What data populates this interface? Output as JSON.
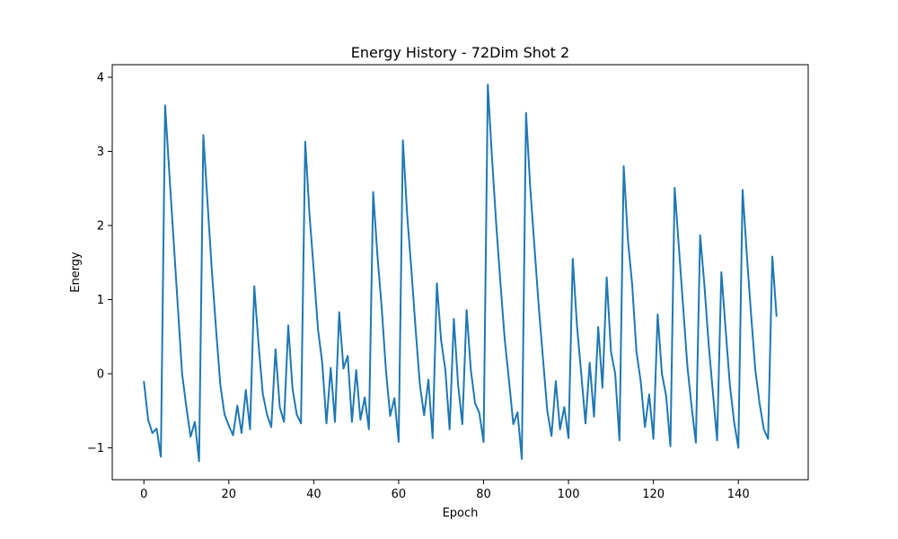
{
  "chart_data": {
    "type": "line",
    "title": "Energy History - 72Dim Shot 2",
    "xlabel": "Epoch",
    "ylabel": "Energy",
    "xlim": [
      -7.45,
      156.45
    ],
    "ylim": [
      -1.43,
      4.17
    ],
    "xticks": [
      0,
      20,
      40,
      60,
      80,
      100,
      120,
      140
    ],
    "yticks": [
      -1,
      0,
      1,
      2,
      3,
      4
    ],
    "grid": false,
    "line_color": "#1f77b4",
    "series": [
      {
        "x": [
          0,
          1,
          2,
          3,
          4,
          5,
          6,
          7,
          8,
          9,
          10,
          11,
          12,
          13,
          14,
          15,
          16,
          17,
          18,
          19,
          20,
          21,
          22,
          23,
          24,
          25,
          26,
          27,
          28,
          29,
          30,
          31,
          32,
          33,
          34,
          35,
          36,
          37,
          38,
          39,
          40,
          41,
          42,
          43,
          44,
          45,
          46,
          47,
          48,
          49,
          50,
          51,
          52,
          53,
          54,
          55,
          56,
          57,
          58,
          59,
          60,
          61,
          62,
          63,
          64,
          65,
          66,
          67,
          68,
          69,
          70,
          71,
          72,
          73,
          74,
          75,
          76,
          77,
          78,
          79,
          80,
          81,
          82,
          83,
          84,
          85,
          86,
          87,
          88,
          89,
          90,
          91,
          92,
          93,
          94,
          95,
          96,
          97,
          98,
          99,
          100,
          101,
          102,
          103,
          104,
          105,
          106,
          107,
          108,
          109,
          110,
          111,
          112,
          113,
          114,
          115,
          116,
          117,
          118,
          119,
          120,
          121,
          122,
          123,
          124,
          125,
          126,
          127,
          128,
          129,
          130,
          131,
          132,
          133,
          134,
          135,
          136,
          137,
          138,
          139,
          140,
          141,
          142,
          143,
          144,
          145,
          146,
          147,
          148,
          149
        ],
        "values": [
          -0.1,
          -0.62,
          -0.8,
          -0.74,
          -1.12,
          3.62,
          2.7,
          1.8,
          0.9,
          0.0,
          -0.45,
          -0.85,
          -0.65,
          -1.18,
          3.22,
          2.3,
          1.4,
          0.6,
          -0.15,
          -0.55,
          -0.7,
          -0.83,
          -0.43,
          -0.8,
          -0.22,
          -0.75,
          1.18,
          0.4,
          -0.27,
          -0.55,
          -0.72,
          0.33,
          -0.45,
          -0.65,
          0.65,
          -0.2,
          -0.55,
          -0.67,
          3.13,
          2.15,
          1.4,
          0.6,
          0.15,
          -0.67,
          0.08,
          -0.65,
          0.83,
          0.07,
          0.24,
          -0.65,
          0.05,
          -0.62,
          -0.32,
          -0.75,
          2.45,
          1.6,
          0.9,
          0.05,
          -0.57,
          -0.33,
          -0.92,
          3.15,
          2.15,
          1.4,
          0.6,
          -0.15,
          -0.56,
          -0.08,
          -0.87,
          1.22,
          0.45,
          0.05,
          -0.75,
          0.74,
          -0.15,
          -0.68,
          0.86,
          0.05,
          -0.4,
          -0.53,
          -0.92,
          3.9,
          2.9,
          2.0,
          1.2,
          0.45,
          -0.1,
          -0.68,
          -0.52,
          -1.15,
          3.52,
          2.5,
          1.7,
          0.9,
          0.2,
          -0.5,
          -0.84,
          -0.1,
          -0.75,
          -0.45,
          -0.87,
          1.55,
          0.65,
          0.0,
          -0.67,
          0.15,
          -0.58,
          0.63,
          -0.19,
          1.3,
          0.3,
          0.0,
          -0.9,
          2.8,
          1.8,
          1.2,
          0.3,
          -0.1,
          -0.72,
          -0.28,
          -0.88,
          0.8,
          0.0,
          -0.3,
          -0.98,
          2.51,
          1.7,
          0.9,
          0.1,
          -0.45,
          -0.93,
          1.87,
          1.2,
          0.4,
          -0.25,
          -0.9,
          1.37,
          0.6,
          -0.15,
          -0.65,
          -1.0,
          2.48,
          1.6,
          0.8,
          0.05,
          -0.4,
          -0.75,
          -0.88,
          1.58,
          0.77
        ]
      }
    ]
  }
}
